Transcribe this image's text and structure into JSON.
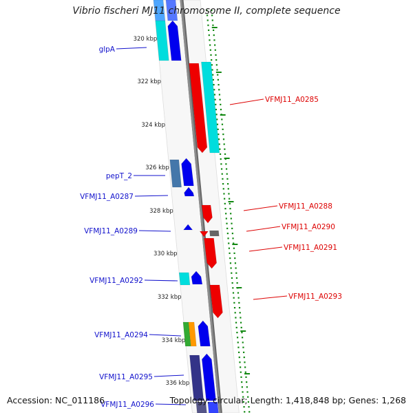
{
  "title": "Vibrio fischeri MJ11 chromosome II, complete sequence",
  "accession_text": "Accession: NC_011186",
  "summary_text": "Topology: circular; Length: 1,418,848 bp; Genes: 1,268",
  "colors": {
    "forward_gene": "#0000ee",
    "reverse_gene": "#ee0000",
    "forward_label": "#1111cc",
    "reverse_label": "#dd0000",
    "tick_marks": "#118811",
    "backbone": "#8c8c8c"
  },
  "kbp_ticks": [
    {
      "label": "320 kbp"
    },
    {
      "label": "322 kbp"
    },
    {
      "label": "324 kbp"
    },
    {
      "label": "326 kbp"
    },
    {
      "label": "328 kbp"
    },
    {
      "label": "330 kbp"
    },
    {
      "label": "332 kbp"
    },
    {
      "label": "334 kbp"
    },
    {
      "label": "336 kbp"
    }
  ],
  "left_genes": [
    {
      "name": "glpA"
    },
    {
      "name": "pepT_2"
    },
    {
      "name": "VFMJ11_A0287"
    },
    {
      "name": "VFMJ11_A0289"
    },
    {
      "name": "VFMJ11_A0292"
    },
    {
      "name": "VFMJ11_A0294"
    },
    {
      "name": "VFMJ11_A0295"
    },
    {
      "name": "VFMJ11_A0296"
    }
  ],
  "right_genes": [
    {
      "name": "VFMJ11_A0285"
    },
    {
      "name": "VFMJ11_A0288"
    },
    {
      "name": "VFMJ11_A0290"
    },
    {
      "name": "VFMJ11_A0291"
    },
    {
      "name": "VFMJ11_A0293"
    }
  ]
}
